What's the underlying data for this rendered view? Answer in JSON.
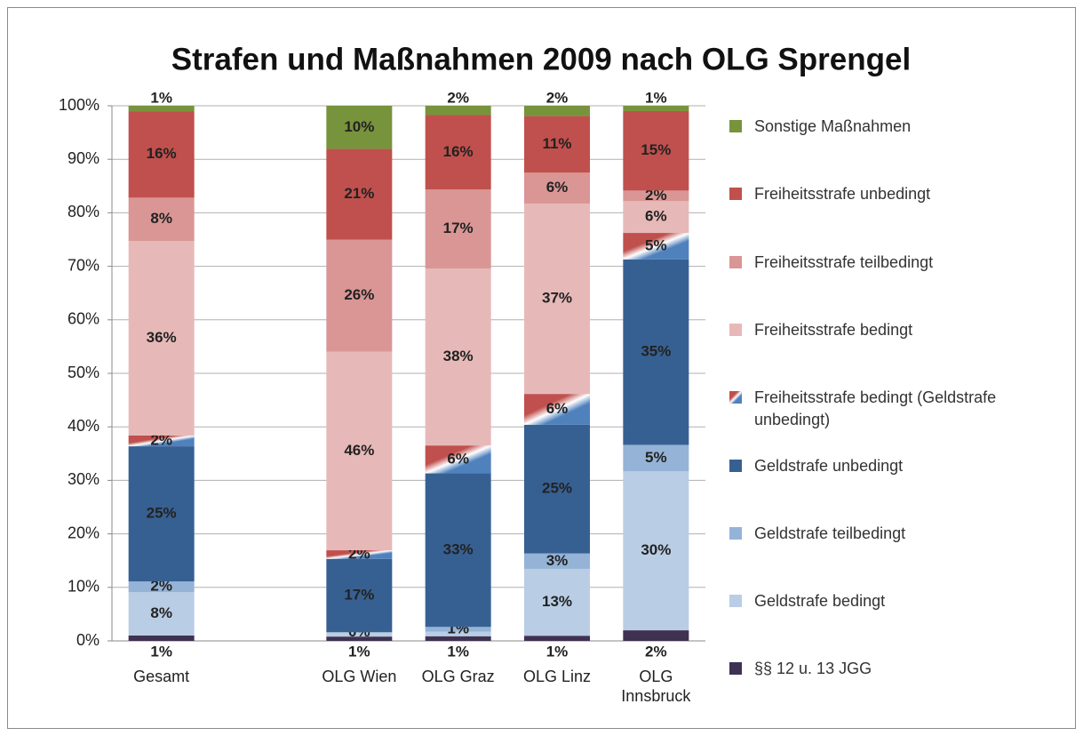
{
  "chart_data": {
    "type": "bar",
    "stacking": "percent",
    "title": "Strafen und Maßnahmen 2009 nach OLG Sprengel",
    "categories": [
      "Gesamt",
      null,
      "OLG Wien",
      "OLG Graz",
      "OLG Linz",
      "OLG Innsbruck"
    ],
    "ylim": [
      0,
      100
    ],
    "yticks": [
      {
        "value": 0,
        "label": "0%"
      },
      {
        "value": 10,
        "label": "10%"
      },
      {
        "value": 20,
        "label": "20%"
      },
      {
        "value": 30,
        "label": "30%"
      },
      {
        "value": 40,
        "label": "40%"
      },
      {
        "value": 50,
        "label": "50%"
      },
      {
        "value": 60,
        "label": "60%"
      },
      {
        "value": 70,
        "label": "70%"
      },
      {
        "value": 80,
        "label": "80%"
      },
      {
        "value": 90,
        "label": "90%"
      },
      {
        "value": 100,
        "label": "100%"
      }
    ],
    "grid": true,
    "legend": "right",
    "series": [
      {
        "name": "§§ 12 u. 13 JGG",
        "color": "#3f3151",
        "values": [
          1,
          null,
          1,
          1,
          1,
          2
        ],
        "value_labels": [
          "1%",
          null,
          "1%",
          "1%",
          "1%",
          "2%"
        ]
      },
      {
        "name": "Geldstrafe bedingt",
        "color": "#b9cde5",
        "values": [
          8,
          null,
          1,
          1,
          13,
          30
        ],
        "value_labels": [
          "8%",
          null,
          null,
          null,
          "13%",
          "30%"
        ]
      },
      {
        "name": "Geldstrafe teilbedingt",
        "color": "#95b3d7",
        "values": [
          2,
          null,
          0,
          1,
          3,
          5
        ],
        "value_labels": [
          "2%",
          null,
          "0%",
          "1%",
          "3%",
          "5%"
        ]
      },
      {
        "name": "Geldstrafe unbedingt",
        "color": "#376092",
        "values": [
          25,
          null,
          17,
          33,
          25,
          35
        ],
        "value_labels": [
          "25%",
          null,
          "17%",
          "33%",
          "25%",
          "35%"
        ]
      },
      {
        "name": "Freiheitsstrafe bedingt (Geldstrafe unbedingt)",
        "color": "#c0504d",
        "color2": "#4f81bd",
        "values": [
          2,
          null,
          2,
          6,
          6,
          5
        ],
        "value_labels": [
          "2%",
          null,
          "2%",
          "6%",
          "6%",
          "5%"
        ]
      },
      {
        "name": "Freiheitsstrafe bedingt",
        "color": "#e6b9b8",
        "values": [
          36,
          null,
          46,
          38,
          37,
          6
        ],
        "value_labels": [
          "36%",
          null,
          "46%",
          "38%",
          "37%",
          "6%"
        ]
      },
      {
        "name": "Freiheitsstrafe teilbedingt",
        "color": "#d99694",
        "values": [
          8,
          null,
          26,
          17,
          6,
          2
        ],
        "value_labels": [
          "8%",
          null,
          "26%",
          "17%",
          "6%",
          "2%"
        ]
      },
      {
        "name": "Freiheitsstrafe unbedingt",
        "color": "#c0504d",
        "values": [
          16,
          null,
          21,
          16,
          11,
          15
        ],
        "value_labels": [
          "16%",
          null,
          "21%",
          "16%",
          "11%",
          "15%"
        ]
      },
      {
        "name": "Sonstige Maßnahmen",
        "color": "#77933c",
        "values": [
          1,
          null,
          10,
          2,
          2,
          1
        ],
        "value_labels": [
          "1%",
          null,
          "10%",
          "2%",
          "2%",
          "1%"
        ]
      }
    ]
  }
}
